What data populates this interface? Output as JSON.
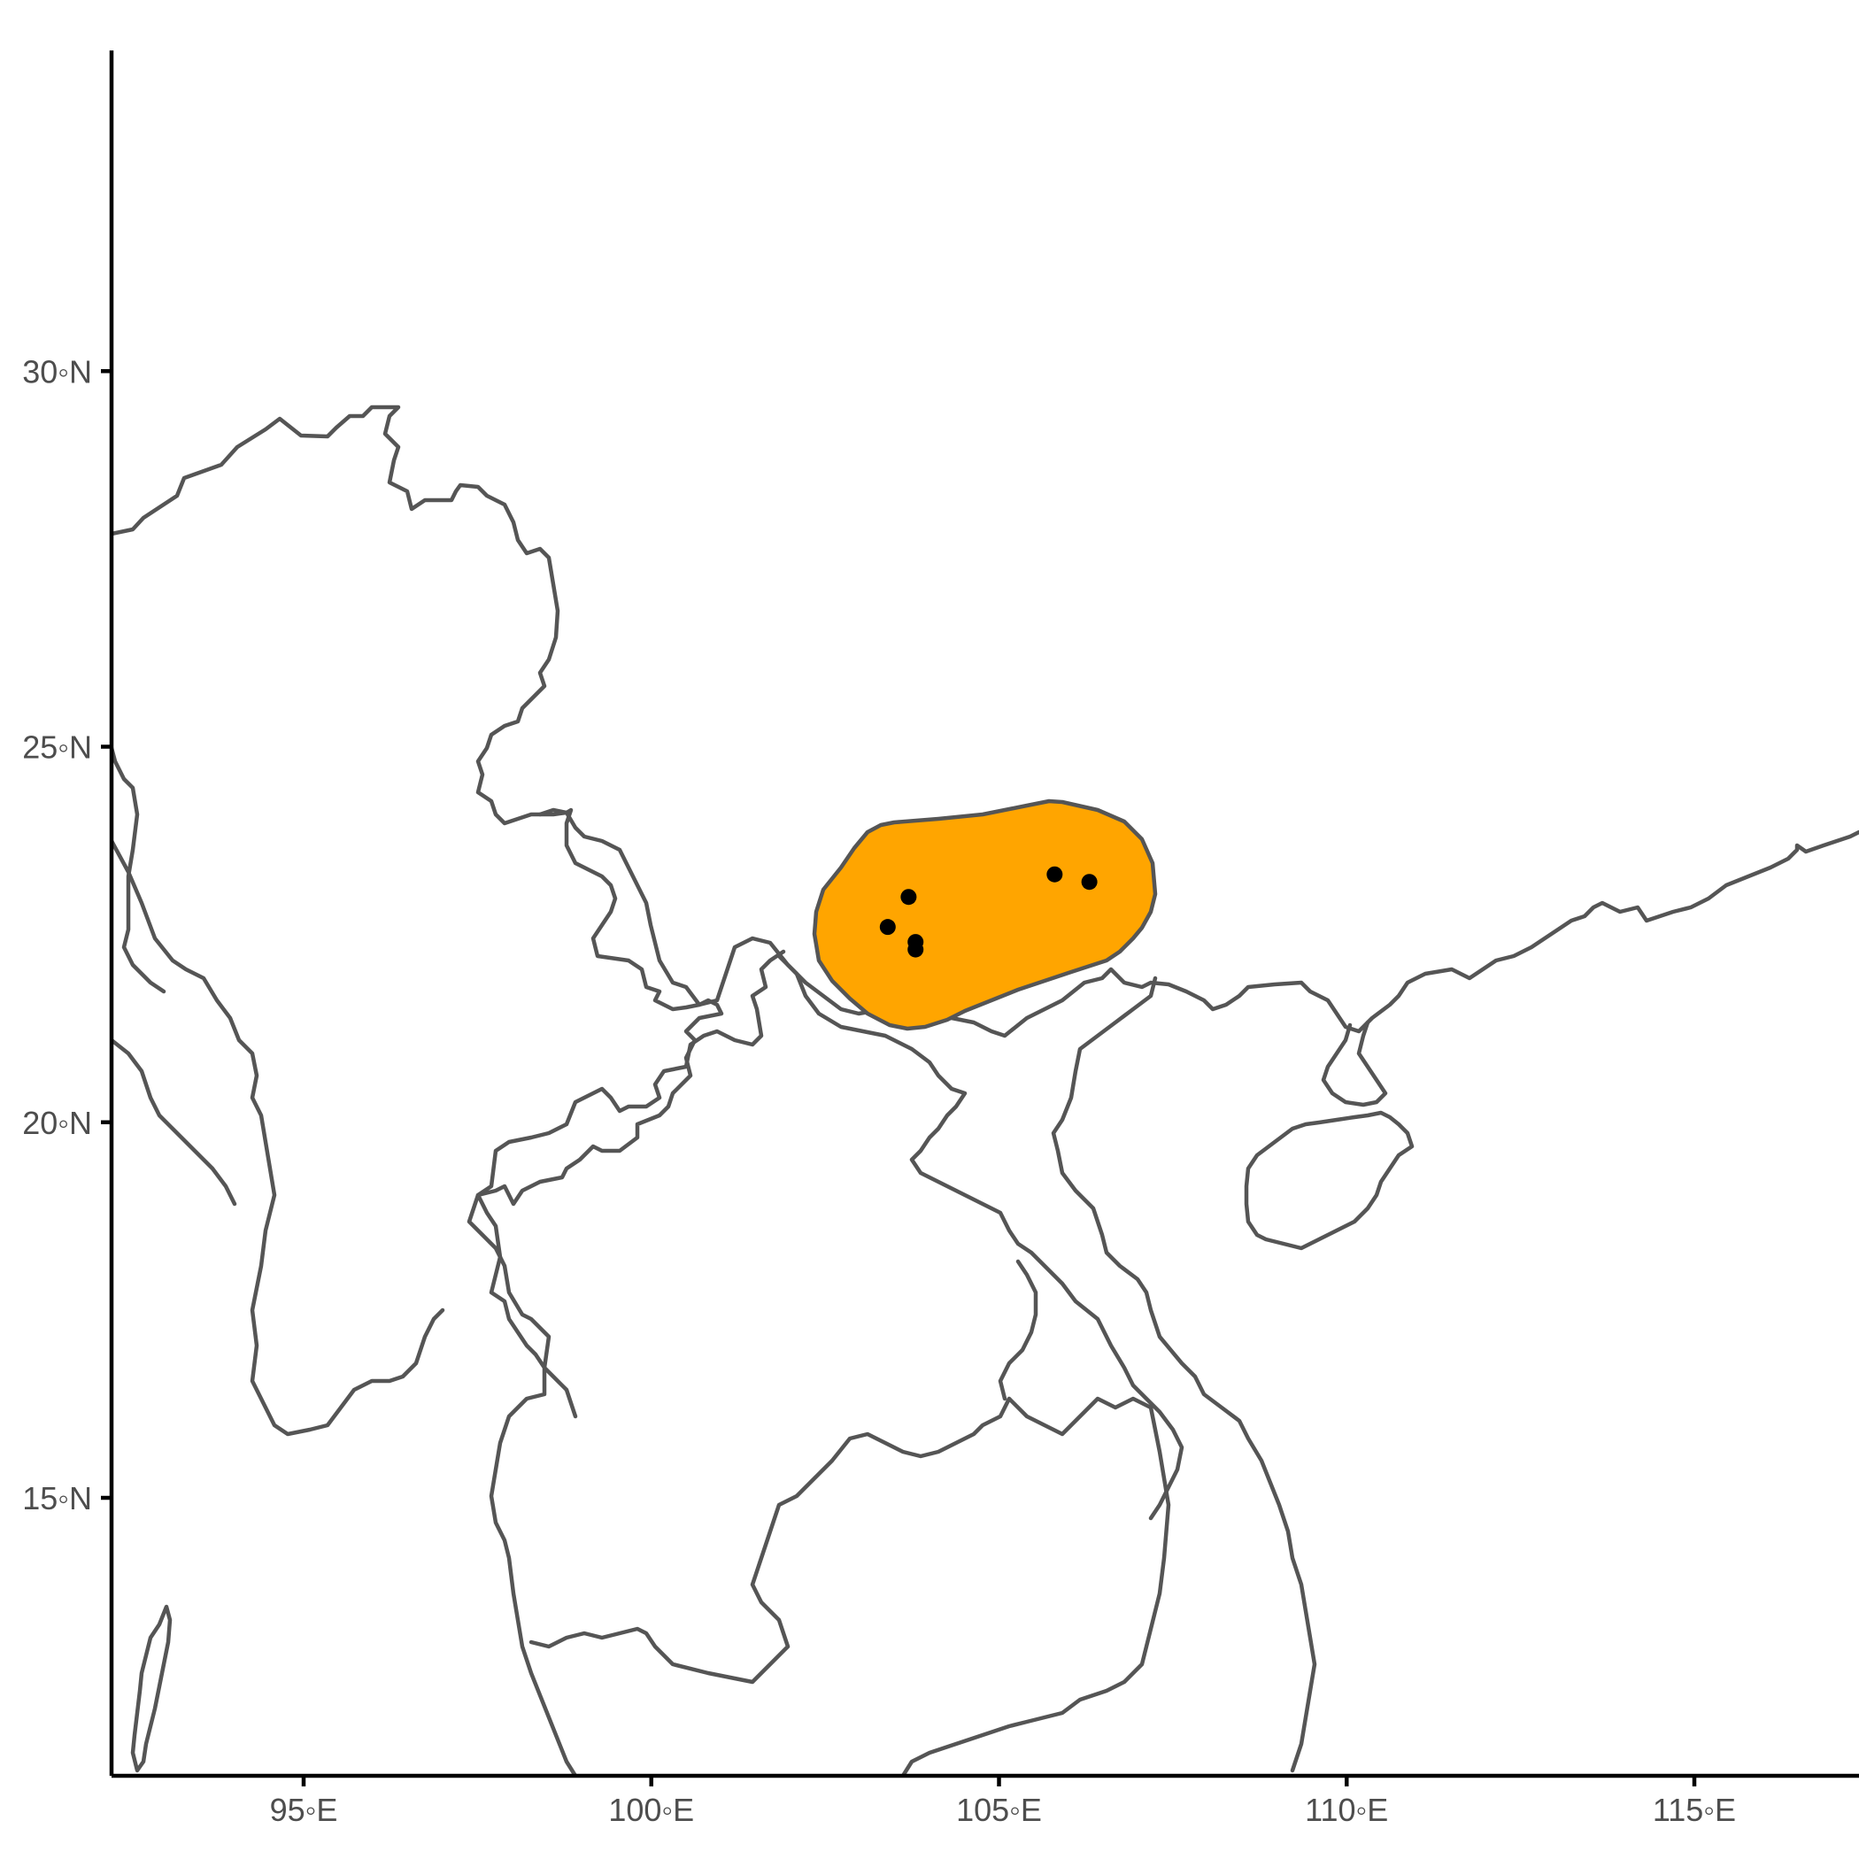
{
  "map": {
    "x_axis": {
      "ticks": [
        {
          "value": 95,
          "label": "95◦E"
        },
        {
          "value": 100,
          "label": "100◦E"
        },
        {
          "value": 105,
          "label": "105◦E"
        },
        {
          "value": 110,
          "label": "110◦E"
        },
        {
          "value": 115,
          "label": "115◦E"
        }
      ],
      "range": [
        92.2,
        117.3
      ]
    },
    "y_axis": {
      "ticks": [
        {
          "value": 15,
          "label": "15◦N"
        },
        {
          "value": 20,
          "label": "20◦N"
        },
        {
          "value": 25,
          "label": "25◦N"
        },
        {
          "value": 30,
          "label": "30◦N"
        }
      ],
      "range": [
        11.4,
        34.3
      ]
    },
    "range_polygon_color": "#FFA500",
    "range_outline_color": "#555555",
    "border_color": "#555555",
    "point_color": "#000000",
    "occurrence_points": [
      {
        "lon": 103.7,
        "lat": 23.0
      },
      {
        "lon": 103.4,
        "lat": 22.6
      },
      {
        "lon": 103.8,
        "lat": 22.4
      },
      {
        "lon": 103.8,
        "lat": 22.3
      },
      {
        "lon": 105.8,
        "lat": 23.3
      },
      {
        "lon": 106.3,
        "lat": 23.2
      }
    ]
  }
}
